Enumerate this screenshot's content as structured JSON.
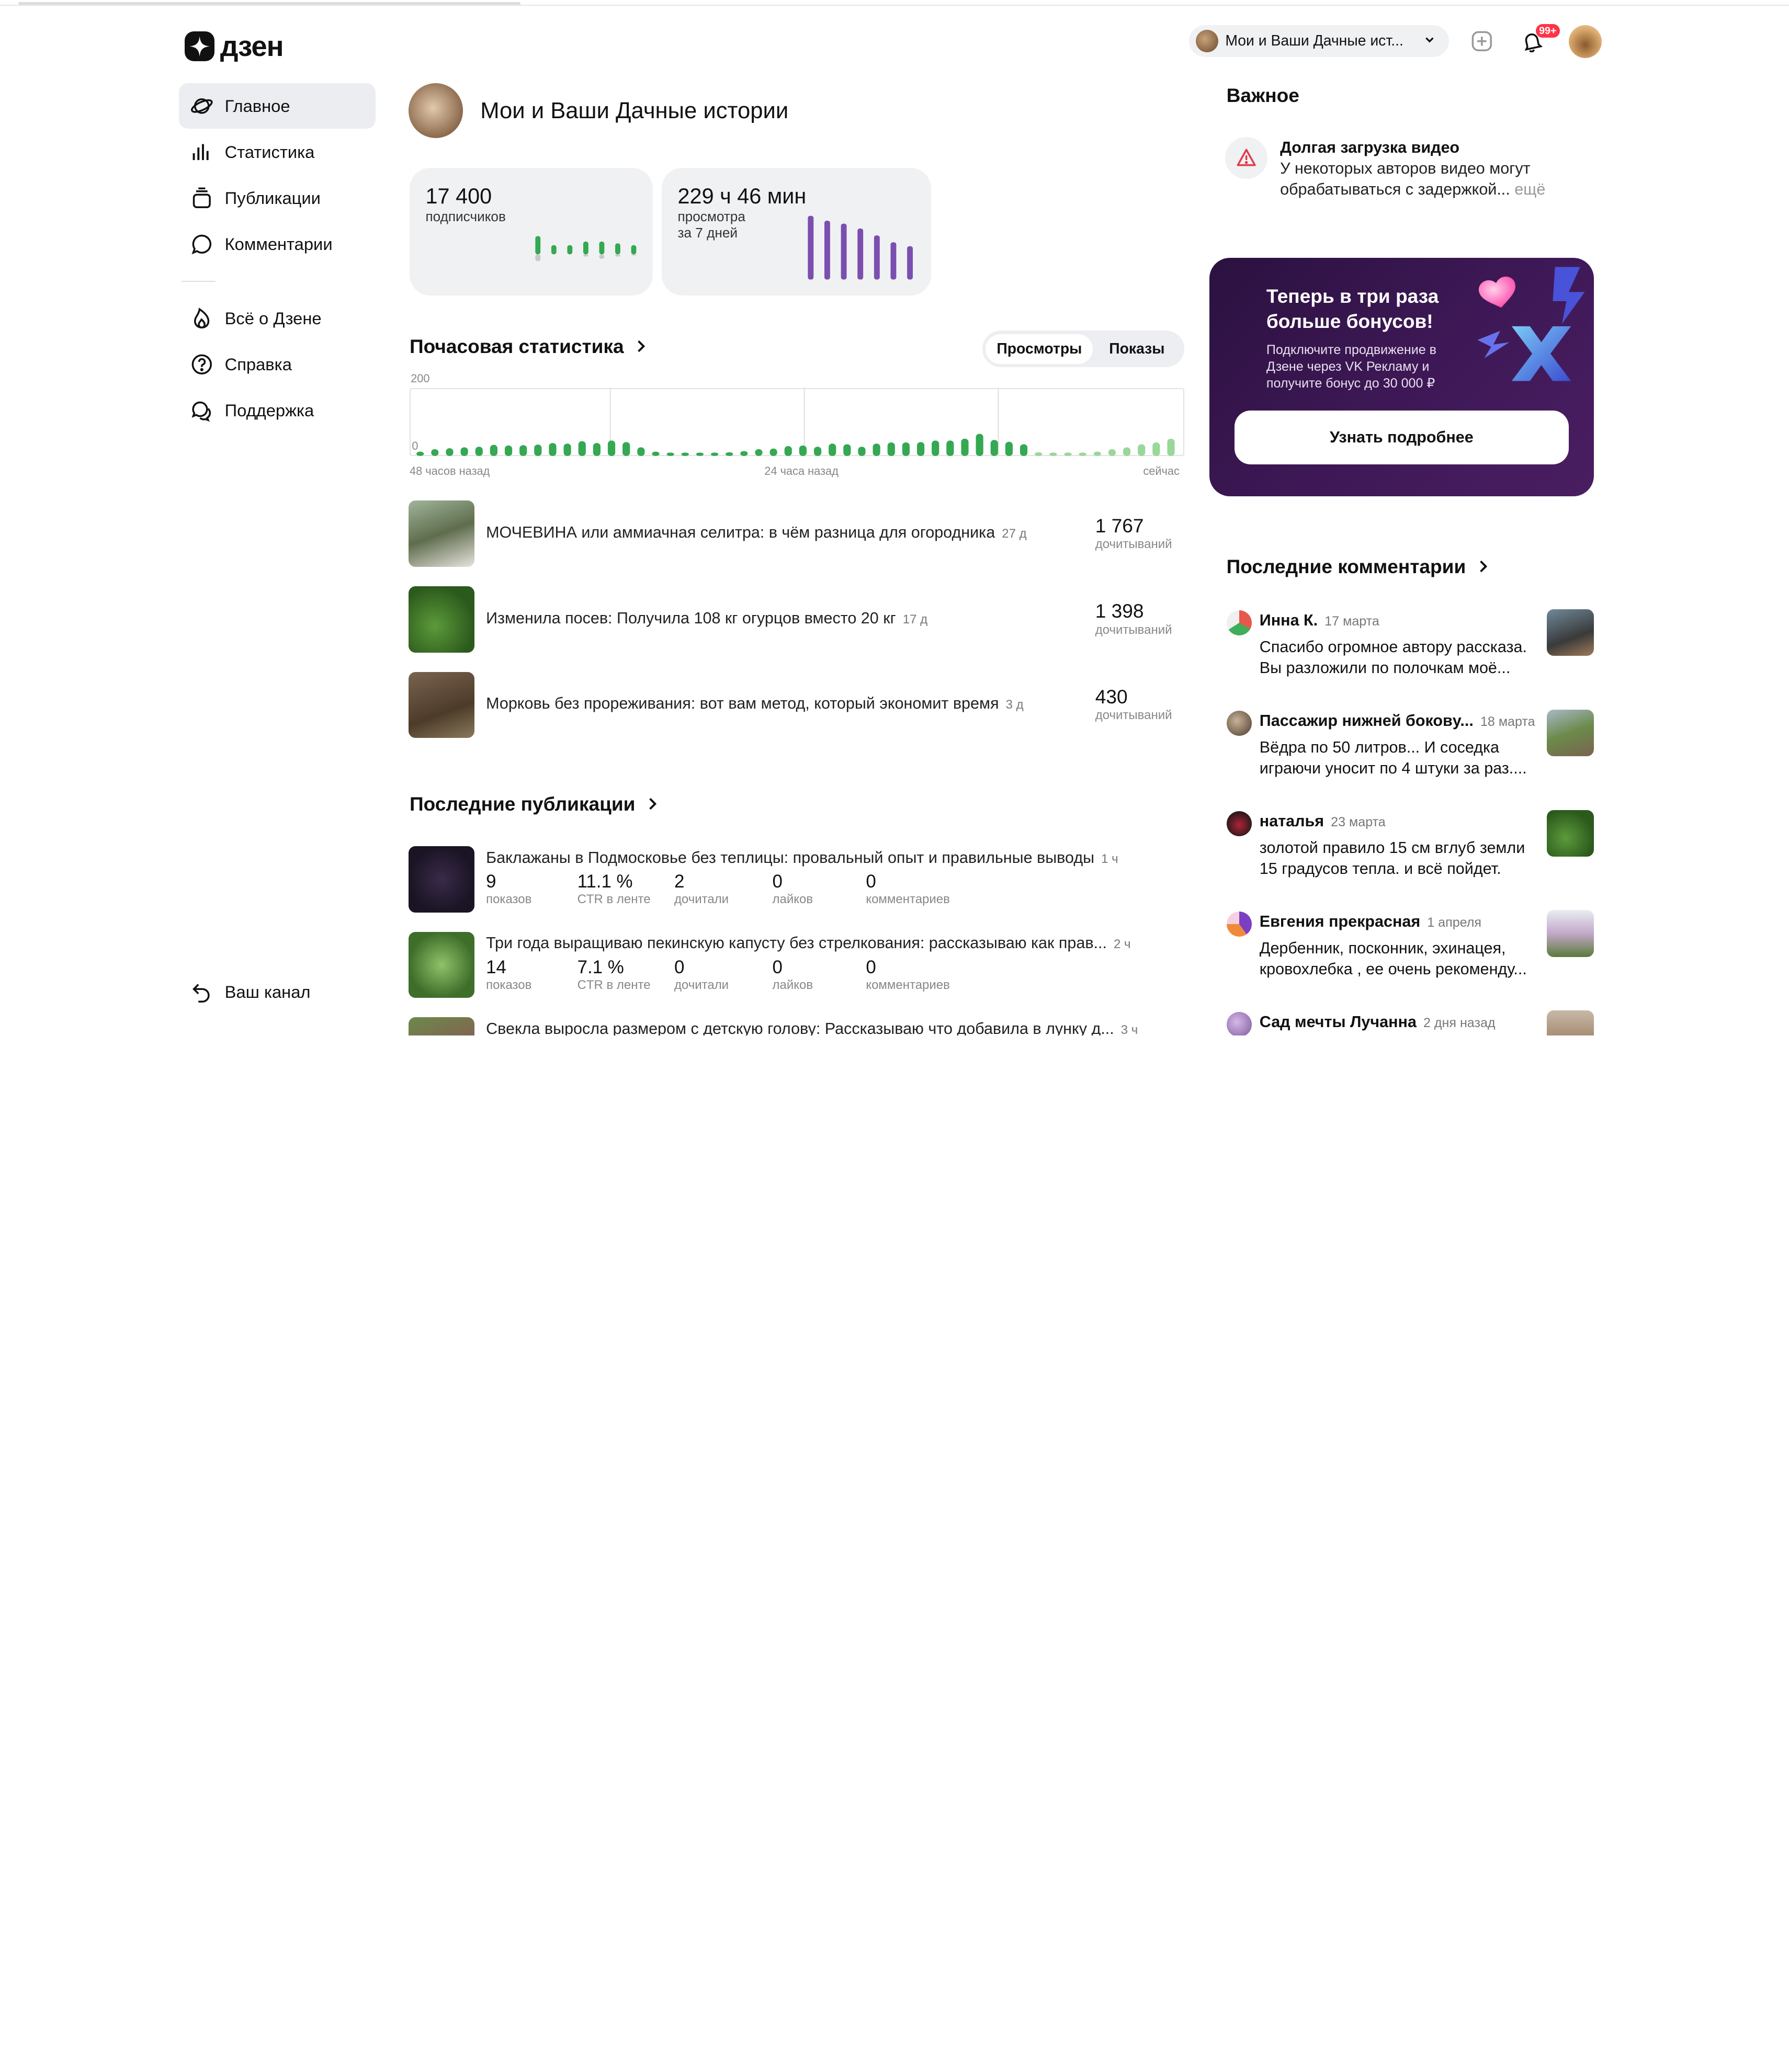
{
  "logo": {
    "text": "дзен"
  },
  "nav": {
    "items": [
      {
        "label": "Главное"
      },
      {
        "label": "Статистика"
      },
      {
        "label": "Публикации"
      },
      {
        "label": "Комментарии"
      }
    ],
    "items2": [
      {
        "label": "Всё о Дзене"
      },
      {
        "label": "Справка"
      },
      {
        "label": "Поддержка"
      }
    ],
    "bottom": "Ваш канал"
  },
  "header": {
    "channel": "Мои и Ваши Дачные ист...",
    "notif_badge": "99+"
  },
  "channel": {
    "title": "Мои и Ваши Дачные истории"
  },
  "cards": {
    "subs_value": "17 400",
    "subs_label": "подписчиков",
    "views_value": "229 ч 46 мин",
    "views_label1": "просмотра",
    "views_label2": "за 7 дней"
  },
  "hourly": {
    "title": "Почасовая статистика",
    "tab_views": "Просмотры",
    "tab_shows": "Показы",
    "ymax": "200",
    "ymin": "0",
    "x_left": "48 часов назад",
    "x_mid": "24 часа назад",
    "x_right": "сейчас"
  },
  "top_pubs": [
    {
      "title": "МОЧЕВИНА или аммиачная селитра: в чём разница для огородника",
      "age": "27 д",
      "num": "1 767",
      "unit": "дочитываний"
    },
    {
      "title": "Изменила посев: Получила 108 кг огурцов вместо 20 кг",
      "age": "17 д",
      "num": "1 398",
      "unit": "дочитываний"
    },
    {
      "title": "Морковь без прореживания: вот вам метод, который экономит время",
      "age": "3 д",
      "num": "430",
      "unit": "дочитываний"
    }
  ],
  "latest": {
    "title": "Последние публикации",
    "rows": [
      {
        "title": "Баклажаны в Подмосковье без теплицы: провальный опыт и правильные выводы",
        "age": "1 ч",
        "stats": [
          {
            "v": "9",
            "l": "показов"
          },
          {
            "v": "11.1 %",
            "l": "CTR в ленте"
          },
          {
            "v": "2",
            "l": "дочитали"
          },
          {
            "v": "0",
            "l": "лайков"
          },
          {
            "v": "0",
            "l": "комментариев"
          }
        ]
      },
      {
        "title": "Три года выращиваю пекинскую капусту без стрелкования: рассказываю как прав...",
        "age": "2 ч",
        "stats": [
          {
            "v": "14",
            "l": "показов"
          },
          {
            "v": "7.1 %",
            "l": "CTR в ленте"
          },
          {
            "v": "0",
            "l": "дочитали"
          },
          {
            "v": "0",
            "l": "лайков"
          },
          {
            "v": "0",
            "l": "комментариев"
          }
        ]
      },
      {
        "title": "Свекла выросла размером с детскую голову: Рассказываю что добавила в лунку д...",
        "age": "3 ч"
      }
    ]
  },
  "important": {
    "title": "Важное",
    "item_title": "Долгая загрузка видео",
    "item_text": "У некоторых авторов видео могут обрабатываться с задержкой...",
    "more": "ещё"
  },
  "promo": {
    "heading": "Теперь в три раза больше бонусов!",
    "text": "Подключите продвижение в Дзене через VK Рекламу и получите бонус до 30 000 ₽",
    "button": "Узнать подробнее"
  },
  "comments": {
    "title": "Последние комментарии",
    "items": [
      {
        "name": "Инна К.",
        "date": "17 марта",
        "text": "Спасибо огромное автору рассказа. Вы разложили по полочкам моё..."
      },
      {
        "name": "Пассажир нижней боковy...",
        "date": "18 марта",
        "text": "Вёдра по 50 литров... И соседка играючи уносит по 4 штуки за раз...."
      },
      {
        "name": "наталья",
        "date": "23 марта",
        "text": "золотой правило 15 см вглуб земли 15 градусов тепла. и всё пойдет."
      },
      {
        "name": "Евгения прекрасная",
        "date": "1 апреля",
        "text": "Дербенник, посконник, эхинацея, кровохлебка , ее очень рекоменду..."
      },
      {
        "name": "Сад мечты Лучанна",
        "date": "2 дня назад",
        "text": ""
      }
    ]
  },
  "chart_data": [
    {
      "type": "bar",
      "title": "Почасовая статистика",
      "series": [
        {
          "name": "Просмотры",
          "values": [
            14,
            22,
            25,
            28,
            30,
            36,
            34,
            35,
            37,
            42,
            40,
            48,
            42,
            50,
            45,
            28,
            14,
            6,
            10,
            5,
            7,
            12,
            16,
            22,
            24,
            32,
            34,
            30,
            40,
            38,
            30,
            40,
            44,
            44,
            45,
            50,
            50,
            56,
            72,
            52,
            46,
            38,
            12,
            10,
            6,
            8,
            14,
            22,
            28,
            38,
            44,
            56
          ]
        }
      ],
      "ylim": [
        0,
        200
      ]
    },
    {
      "type": "bar",
      "title": "",
      "series": [
        {
          "values": [
            10,
            5,
            5,
            7,
            7,
            6,
            5
          ]
        }
      ]
    },
    {
      "type": "bar",
      "title": "",
      "series": [
        {
          "values": [
            65,
            60,
            57,
            52,
            45,
            38,
            34
          ]
        }
      ]
    }
  ],
  "colors": {
    "accent_green": "#34a853",
    "purple": "#7b4fb0",
    "active_bg": "#ebedf0",
    "badge": "#ff3347"
  }
}
